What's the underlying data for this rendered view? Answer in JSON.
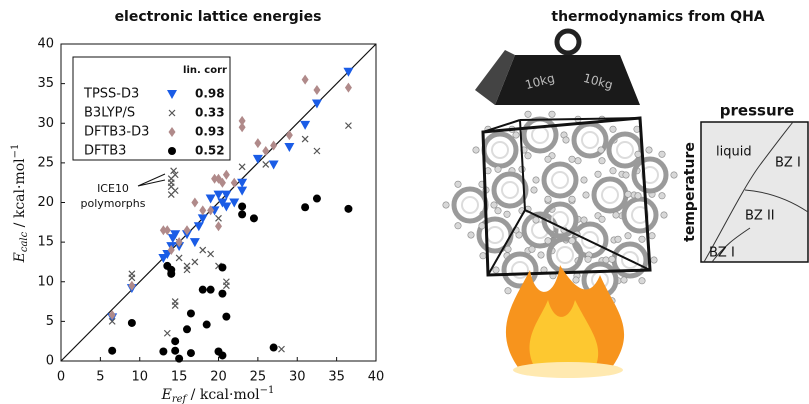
{
  "chart_data": {
    "type": "scatter",
    "title": "electronic lattice energies",
    "xlabel": {
      "symbol": "E",
      "sub": "ref",
      "unit": " / kcal·mol",
      "sup": "−1"
    },
    "ylabel": {
      "symbol": "E",
      "sub": "calc",
      "unit": " / kcal·mol",
      "sup": "−1"
    },
    "xlim": [
      0,
      40
    ],
    "ylim": [
      0,
      40
    ],
    "xticks": [
      0,
      5,
      10,
      15,
      20,
      25,
      30,
      35,
      40
    ],
    "yticks": [
      0,
      5,
      10,
      15,
      20,
      25,
      30,
      35,
      40
    ],
    "grid": false,
    "legend_title": "lin. corr",
    "legend_position": "upper left",
    "annotation": [
      "ICE10",
      "polymorphs"
    ],
    "series": [
      {
        "name": "TPSS-D3",
        "color": "#1a5ce6",
        "marker": "triangle-down",
        "corr": 0.98,
        "x": [
          6.5,
          9,
          13,
          13.5,
          14,
          14.2,
          14.5,
          15,
          16,
          17,
          17.5,
          18,
          19,
          19.5,
          20,
          20.5,
          21,
          21,
          22,
          23,
          23,
          25,
          27,
          29,
          31,
          32.5,
          36.5
        ],
        "values": [
          5.5,
          9.2,
          13,
          13.5,
          14.5,
          15.5,
          16,
          14.5,
          16,
          15,
          17,
          18,
          20.5,
          19,
          21,
          20,
          19.5,
          21,
          20,
          21.5,
          22.5,
          25.5,
          24.8,
          27,
          29.8,
          32.5,
          36.5
        ]
      },
      {
        "name": "B3LYP/S",
        "color": "#555555",
        "marker": "cross",
        "corr": 0.33,
        "x": [
          6.5,
          9,
          9,
          13.5,
          14,
          14.5,
          14,
          14,
          14,
          14.5,
          14.3,
          14.5,
          14.5,
          15,
          15,
          16,
          16,
          17,
          18,
          19,
          20,
          20,
          21,
          21,
          23,
          26,
          28,
          31,
          32.5,
          36.5
        ],
        "values": [
          5,
          10.5,
          11,
          3.5,
          21,
          21.5,
          22,
          22.5,
          23,
          23.5,
          24,
          7.5,
          7,
          15,
          13,
          11.5,
          12,
          12.5,
          14,
          13.5,
          18,
          12,
          10,
          9.5,
          24.5,
          24.8,
          1.5,
          28,
          26.5,
          29.7
        ]
      },
      {
        "name": "DFTB3-D3",
        "color": "#b08a8a",
        "marker": "diamond",
        "corr": 0.93,
        "x": [
          6.5,
          9,
          13,
          13.5,
          14,
          15,
          17,
          18,
          19,
          19.5,
          20,
          20.5,
          21,
          22,
          23,
          23,
          25,
          26,
          27,
          29,
          31,
          32.5,
          36.5,
          16,
          20
        ],
        "values": [
          5.8,
          9.5,
          16.5,
          16.5,
          14,
          15,
          20,
          19,
          19,
          23,
          23,
          22.5,
          23.5,
          22.5,
          29.5,
          30.3,
          27.5,
          26.5,
          27.2,
          28.5,
          35.5,
          34.2,
          34.5,
          16.5,
          17
        ]
      },
      {
        "name": "DFTB3",
        "color": "#000000",
        "marker": "circle",
        "corr": 0.52,
        "x": [
          6.5,
          9,
          13,
          13.5,
          14,
          14,
          14.5,
          14.5,
          15,
          16,
          16.5,
          16.5,
          18,
          18.5,
          19,
          20,
          20.5,
          20.5,
          20.5,
          21,
          23,
          23,
          24.5,
          27,
          31,
          32.5,
          36.5
        ],
        "values": [
          1.3,
          4.8,
          1.2,
          12,
          11.5,
          11,
          1.3,
          2.5,
          0.3,
          4,
          1,
          6,
          9,
          4.6,
          9,
          1.2,
          0.7,
          11.8,
          8.5,
          5.6,
          18.5,
          19.5,
          18,
          1.7,
          19.4,
          20.5,
          19.2
        ]
      }
    ]
  },
  "illustration": {
    "title": "thermodynamics from QHA",
    "weight_labels": [
      "10kg",
      "10kg"
    ],
    "phase_diagram": {
      "x_label": "pressure",
      "y_label": "temperature",
      "regions": [
        "liquid",
        "BZ I",
        "BZ II",
        "BZ I"
      ]
    }
  }
}
